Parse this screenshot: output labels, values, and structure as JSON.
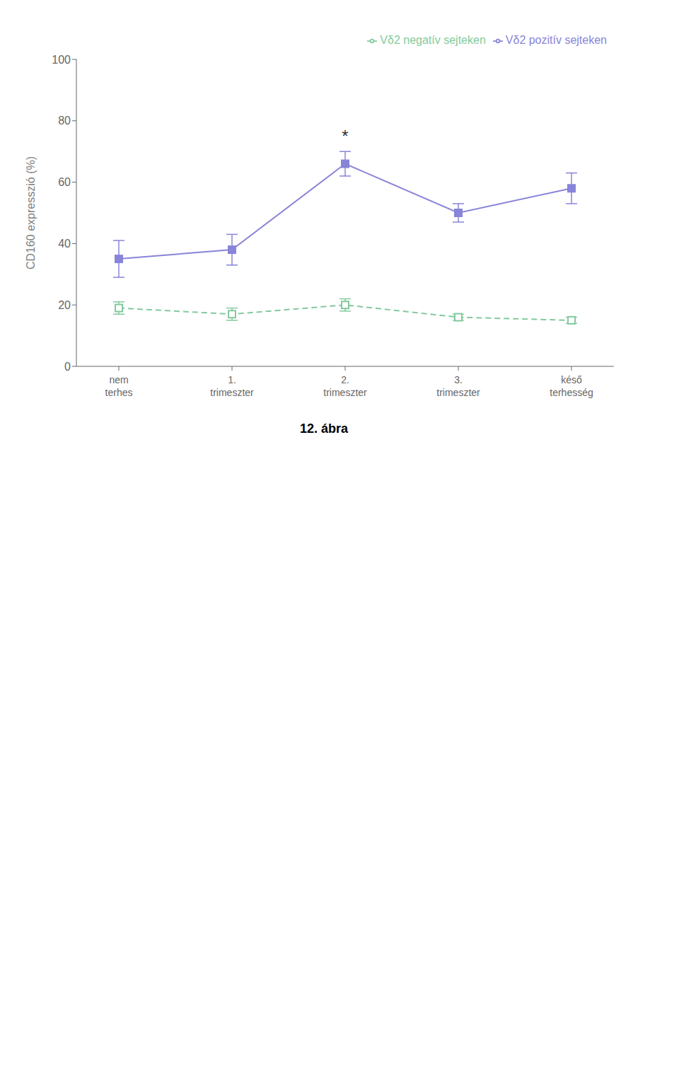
{
  "chart_data": {
    "type": "line",
    "title": "12. ábra",
    "ylabel": "CD160 expresszió (%)",
    "categories": [
      "nem terhes",
      "1. trimeszter",
      "2. trimeszter",
      "3. trimeszter",
      "késő terhesség"
    ],
    "series": [
      {
        "name": "Vδ2 pozitív sejteken",
        "color": "#8884d8",
        "marker": "square",
        "line_style": "solid",
        "values": [
          35,
          38,
          66,
          50,
          58
        ],
        "errors": [
          6,
          5,
          4,
          3,
          5
        ]
      },
      {
        "name": "Vδ2 negatív sejteken",
        "color": "#82ca9d",
        "marker": "open_square",
        "line_style": "dashed",
        "values": [
          19,
          17,
          20,
          16,
          15
        ],
        "errors": [
          2,
          2,
          2,
          1,
          1
        ]
      }
    ],
    "annotations": [
      {
        "text": "*",
        "x": "2. trimeszter",
        "y": 72
      }
    ],
    "ylim": [
      0,
      100
    ],
    "yticks": [
      0,
      20,
      40,
      60,
      80,
      100
    ],
    "grid": false,
    "legend": "upper right"
  }
}
